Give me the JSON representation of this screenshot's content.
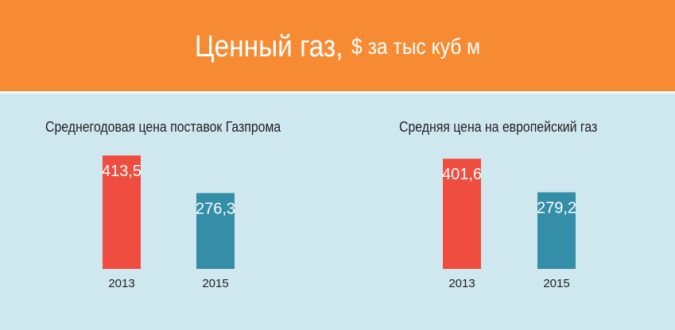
{
  "header": {
    "title": "Ценный газ,",
    "subtitle": "$ за тыс куб м",
    "background": "#f78b33"
  },
  "colors": {
    "background": "#cfe7ef",
    "bar_2013": "#ef4d3f",
    "bar_2015": "#348ea8"
  },
  "chart_data": [
    {
      "type": "bar",
      "title": "Среднегодовая цена поставок  Газпрома",
      "categories": [
        "2013",
        "2015"
      ],
      "values": [
        413.5,
        276.3
      ],
      "value_labels": [
        "413,5",
        "276,3"
      ],
      "ylim": [
        0,
        413.5
      ],
      "grid": false,
      "legend": "none"
    },
    {
      "type": "bar",
      "title": "Средняя цена на европейский газ",
      "categories": [
        "2013",
        "2015"
      ],
      "values": [
        401.6,
        279.2
      ],
      "value_labels": [
        "401,6",
        "279,2"
      ],
      "ylim": [
        0,
        413.5
      ],
      "grid": false,
      "legend": "none"
    }
  ]
}
